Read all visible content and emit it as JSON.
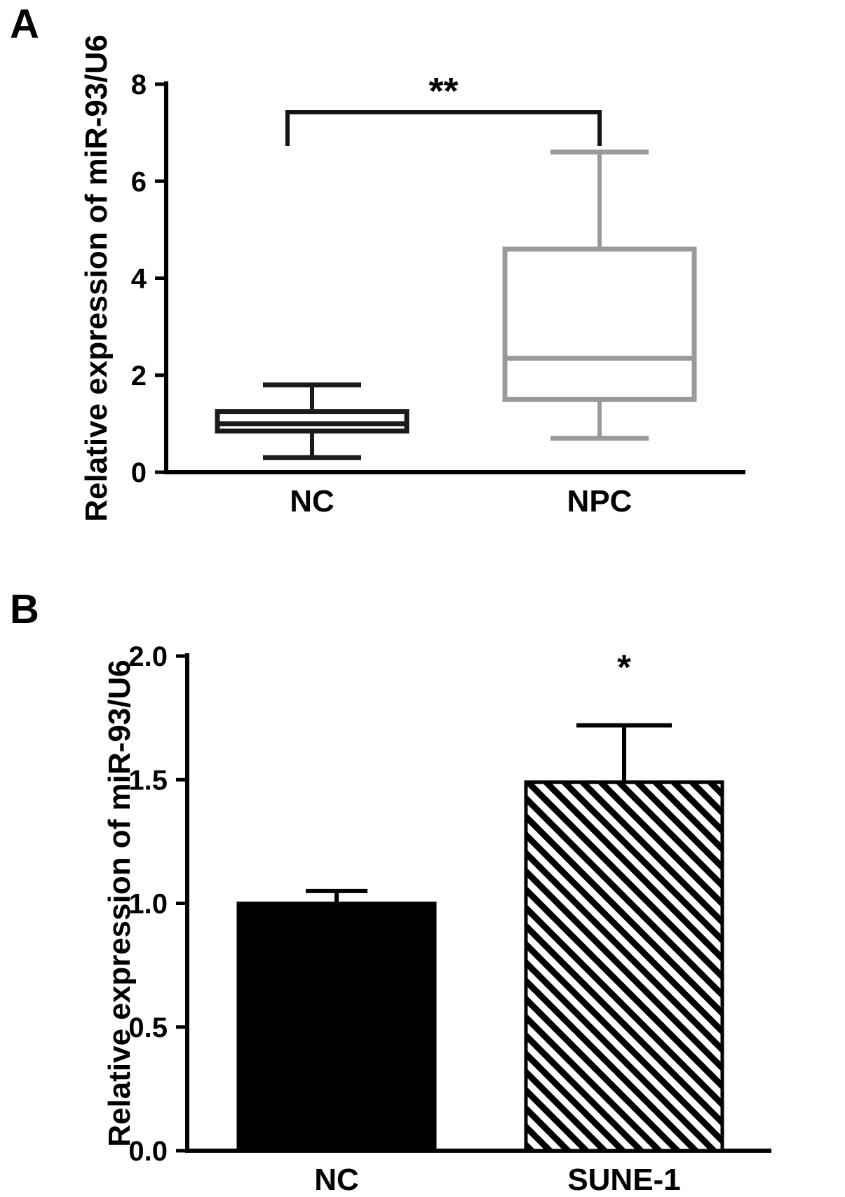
{
  "panels": [
    {
      "label": "A"
    },
    {
      "label": "B"
    }
  ],
  "colors": {
    "nc_box": "#1b1b1b",
    "npc_box": "#9a9a9a",
    "axis": "#000000",
    "bar_solid": "#000000"
  },
  "chart_data": [
    {
      "type": "box",
      "panel": "A",
      "title": "",
      "ylabel": "Relative expression of miR-93/U6",
      "xlabel": "",
      "ylim": [
        0,
        8
      ],
      "ytick_values": [
        0,
        2,
        4,
        6,
        8
      ],
      "ytick_labels": [
        "0",
        "2",
        "4",
        "6",
        "8"
      ],
      "categories": [
        "NC",
        "NPC"
      ],
      "series": [
        {
          "name": "NC",
          "whisker_low": 0.3,
          "q1": 0.85,
          "median": 1.0,
          "q3": 1.25,
          "whisker_high": 1.8,
          "color": "#1b1b1b"
        },
        {
          "name": "NPC",
          "whisker_low": 0.7,
          "q1": 1.5,
          "median": 2.35,
          "q3": 4.6,
          "whisker_high": 6.6,
          "color": "#9a9a9a"
        }
      ],
      "significance": {
        "label": "**",
        "from": "NC",
        "to": "NPC"
      },
      "grid": false,
      "legend": false
    },
    {
      "type": "bar",
      "panel": "B",
      "title": "",
      "ylabel": "Relative expression of miR-93/U6",
      "xlabel": "",
      "ylim": [
        0,
        2
      ],
      "ytick_values": [
        0,
        0.5,
        1,
        1.5,
        2
      ],
      "ytick_labels": [
        "0.0",
        "0.5",
        "1.0",
        "1.5",
        "2.0"
      ],
      "categories": [
        "NC",
        "SUNE-1"
      ],
      "values": [
        1.0,
        1.49
      ],
      "errors_plus": [
        0.05,
        0.23
      ],
      "bar_fills": [
        "solid",
        "hatch"
      ],
      "bar_color": "#000000",
      "significance": {
        "label": "*",
        "on": "SUNE-1"
      },
      "grid": false,
      "legend": false
    }
  ]
}
